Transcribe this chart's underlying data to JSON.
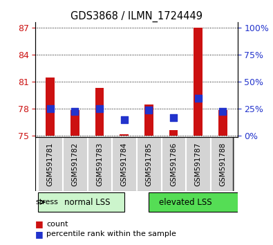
{
  "title": "GDS3868 / ILMN_1724449",
  "samples": [
    "GSM591781",
    "GSM591782",
    "GSM591783",
    "GSM591784",
    "GSM591785",
    "GSM591786",
    "GSM591787",
    "GSM591788"
  ],
  "red_tops": [
    81.4,
    77.85,
    80.3,
    75.12,
    78.4,
    75.55,
    87.0,
    77.85
  ],
  "red_bottoms": [
    75.0,
    75.0,
    75.0,
    75.0,
    75.0,
    75.0,
    75.0,
    75.0
  ],
  "blue_y": [
    77.95,
    77.65,
    77.95,
    76.75,
    77.8,
    76.95,
    79.15,
    77.65
  ],
  "ylim_left": [
    74.8,
    87.6
  ],
  "yticks_left": [
    75,
    78,
    81,
    84,
    87
  ],
  "yticks_right": [
    0,
    25,
    50,
    75,
    100
  ],
  "group_labels": [
    "normal LSS",
    "elevated LSS"
  ],
  "group_ranges": [
    [
      0,
      4
    ],
    [
      4,
      8
    ]
  ],
  "group_colors": [
    "#ccf5cc",
    "#55dd55"
  ],
  "bar_color": "#cc1111",
  "dot_color": "#2233cc",
  "bar_width": 0.35,
  "dot_size": 45,
  "ylabel_left_color": "#cc1111",
  "ylabel_right_color": "#2233cc",
  "stress_label": "stress",
  "legend_count": "count",
  "legend_percentile": "percentile rank within the sample",
  "sample_bg": "#d4d4d4"
}
